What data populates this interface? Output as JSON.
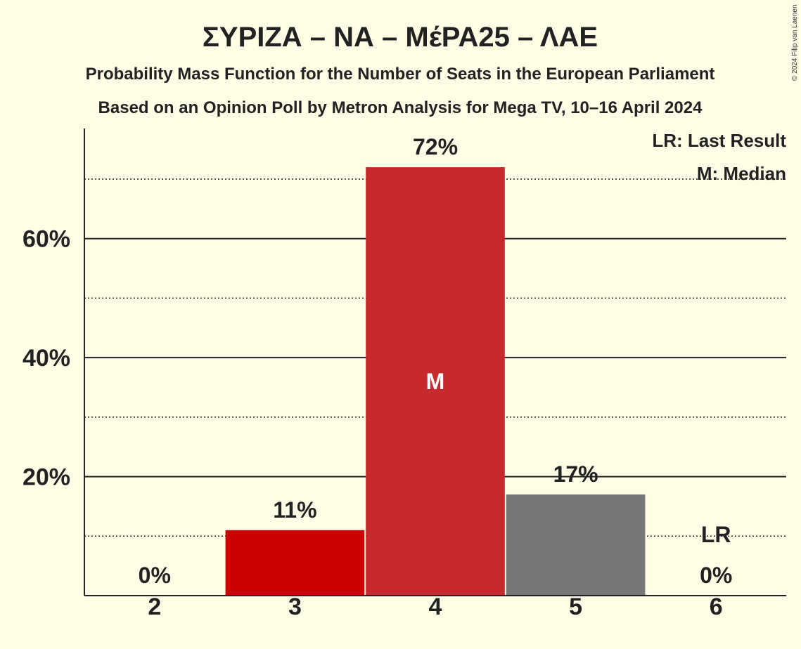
{
  "chart_data": {
    "type": "bar",
    "title": "ΣΥΡΙΖΑ – ΝΑ – ΜέΡΑ25 – ΛΑΕ",
    "subtitle": "Probability Mass Function for the Number of Seats in the European Parliament",
    "subtitle2": "Based on an Opinion Poll by Metron Analysis for Mega TV, 10–16 April 2024",
    "copyright": "© 2024 Filip van Laenen",
    "xlabel": "",
    "ylabel": "",
    "categories": [
      "2",
      "3",
      "4",
      "5",
      "6"
    ],
    "values": [
      0,
      11,
      72,
      17,
      0
    ],
    "value_labels": [
      "0%",
      "11%",
      "72%",
      "17%",
      "0%"
    ],
    "bar_colors": [
      "#cc0000",
      "#cc0000",
      "#c62a2d",
      "#777777",
      "#777777"
    ],
    "ylim": [
      0,
      78
    ],
    "yticks": [
      20,
      40,
      60
    ],
    "ytick_labels": [
      "20%",
      "40%",
      "60%"
    ],
    "minor_gridlines": [
      10,
      30,
      50,
      70
    ],
    "median_category": "4",
    "median_marker": "M",
    "last_result_category": "6",
    "last_result_marker": "LR",
    "legend": [
      "LR: Last Result",
      "M: Median"
    ],
    "legend_position": "top-right"
  }
}
